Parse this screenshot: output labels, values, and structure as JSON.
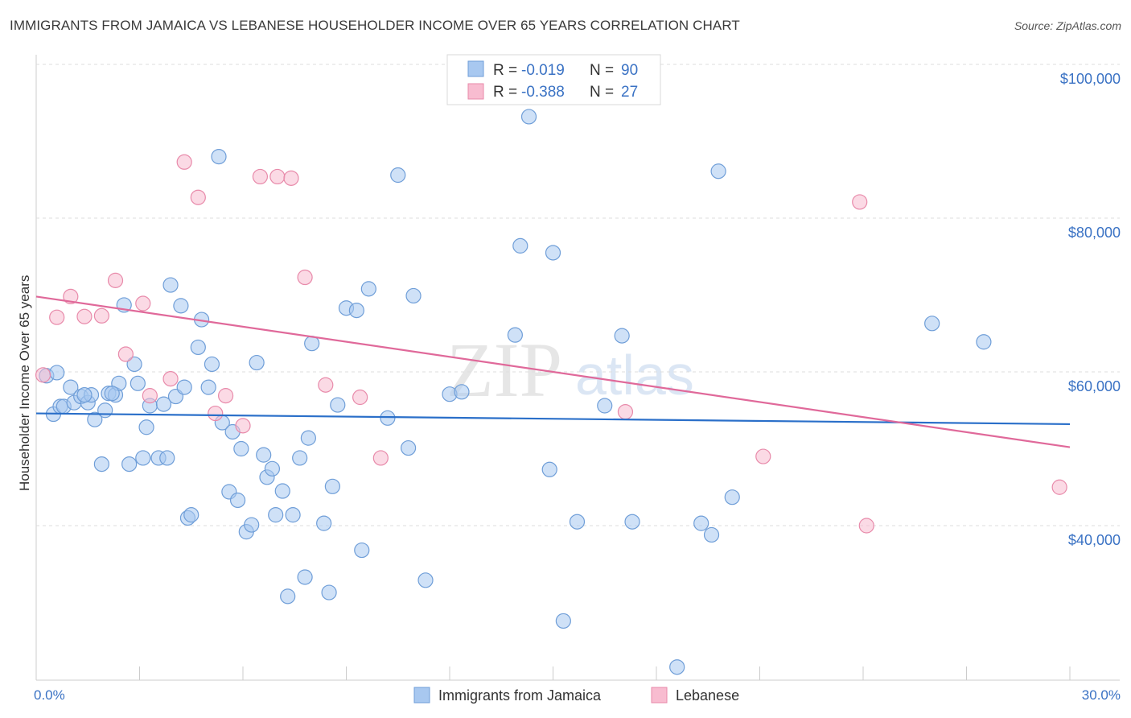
{
  "title": "IMMIGRANTS FROM JAMAICA VS LEBANESE HOUSEHOLDER INCOME OVER 65 YEARS CORRELATION CHART",
  "source": "Source: ZipAtlas.com",
  "watermark": "ZIPatlas",
  "chart_data": {
    "type": "scatter",
    "ylabel": "Householder Income Over 65 years",
    "xlim": [
      0,
      30
    ],
    "ylim": [
      20000,
      102000
    ],
    "x_tick_labels": [
      "0.0%",
      "30.0%"
    ],
    "y_ticks": [
      {
        "value": 100000,
        "label": "$100,000"
      },
      {
        "value": 80000,
        "label": "$80,000"
      },
      {
        "value": 60000,
        "label": "$60,000"
      },
      {
        "value": 40000,
        "label": "$40,000"
      }
    ],
    "legend": {
      "r_label": "R =",
      "n_label": "N =",
      "rows": [
        {
          "r": "-0.019",
          "n": "90",
          "color": "#a8c8f0",
          "stroke": "#6f9ed8"
        },
        {
          "r": "-0.388",
          "n": "27",
          "color": "#f8bcd0",
          "stroke": "#e88aaa"
        }
      ]
    },
    "series": [
      {
        "name": "Immigrants from Jamaica",
        "color": "#a8c8f0",
        "stroke": "#6f9ed8",
        "line_color": "#2a6fc9",
        "trend": [
          [
            0,
            54600
          ],
          [
            30,
            53200
          ]
        ],
        "points": [
          [
            0.3,
            59500
          ],
          [
            0.5,
            54500
          ],
          [
            0.7,
            55500
          ],
          [
            0.8,
            55500
          ],
          [
            1.0,
            58000
          ],
          [
            1.1,
            56000
          ],
          [
            1.3,
            56800
          ],
          [
            1.5,
            56000
          ],
          [
            1.6,
            57000
          ],
          [
            1.7,
            53800
          ],
          [
            1.9,
            48000
          ],
          [
            2.0,
            55000
          ],
          [
            2.1,
            57200
          ],
          [
            2.3,
            57000
          ],
          [
            2.4,
            58500
          ],
          [
            2.55,
            68700
          ],
          [
            2.7,
            48000
          ],
          [
            2.85,
            61000
          ],
          [
            2.95,
            58500
          ],
          [
            3.1,
            48800
          ],
          [
            3.2,
            52800
          ],
          [
            3.3,
            55600
          ],
          [
            3.55,
            48800
          ],
          [
            3.7,
            55800
          ],
          [
            3.8,
            48800
          ],
          [
            3.9,
            71300
          ],
          [
            4.05,
            56800
          ],
          [
            4.2,
            68600
          ],
          [
            4.3,
            58000
          ],
          [
            4.4,
            41000
          ],
          [
            4.5,
            41400
          ],
          [
            4.7,
            63200
          ],
          [
            4.8,
            66800
          ],
          [
            5.0,
            58000
          ],
          [
            5.1,
            61000
          ],
          [
            5.3,
            88000
          ],
          [
            5.4,
            53400
          ],
          [
            5.6,
            44400
          ],
          [
            5.7,
            52200
          ],
          [
            5.85,
            43300
          ],
          [
            5.95,
            50000
          ],
          [
            6.1,
            39200
          ],
          [
            6.25,
            40100
          ],
          [
            6.4,
            61200
          ],
          [
            6.6,
            49200
          ],
          [
            6.7,
            46300
          ],
          [
            6.85,
            47400
          ],
          [
            6.95,
            41400
          ],
          [
            7.15,
            44500
          ],
          [
            7.3,
            30800
          ],
          [
            7.45,
            41400
          ],
          [
            7.65,
            48800
          ],
          [
            7.8,
            33300
          ],
          [
            7.9,
            51400
          ],
          [
            8.0,
            63700
          ],
          [
            8.35,
            40300
          ],
          [
            8.5,
            31300
          ],
          [
            8.6,
            45100
          ],
          [
            8.75,
            55700
          ],
          [
            9.0,
            68300
          ],
          [
            9.3,
            68000
          ],
          [
            9.45,
            36800
          ],
          [
            9.65,
            70800
          ],
          [
            10.2,
            54000
          ],
          [
            10.5,
            85600
          ],
          [
            10.8,
            50100
          ],
          [
            10.95,
            69900
          ],
          [
            11.3,
            32900
          ],
          [
            12.0,
            57100
          ],
          [
            12.35,
            57400
          ],
          [
            13.9,
            64800
          ],
          [
            14.05,
            76400
          ],
          [
            14.3,
            93200
          ],
          [
            14.9,
            47300
          ],
          [
            15.0,
            75500
          ],
          [
            15.3,
            27600
          ],
          [
            15.7,
            40500
          ],
          [
            16.5,
            55600
          ],
          [
            17.0,
            64700
          ],
          [
            17.3,
            40500
          ],
          [
            18.6,
            21600
          ],
          [
            19.3,
            40300
          ],
          [
            19.6,
            38800
          ],
          [
            19.8,
            86100
          ],
          [
            20.2,
            43700
          ],
          [
            26.0,
            66300
          ],
          [
            27.5,
            63900
          ],
          [
            0.6,
            59900
          ],
          [
            2.2,
            57200
          ],
          [
            1.4,
            57000
          ]
        ]
      },
      {
        "name": "Lebanese",
        "color": "#f8bcd0",
        "stroke": "#e88aaa",
        "line_color": "#e0699a",
        "trend": [
          [
            0,
            69800
          ],
          [
            30,
            50200
          ]
        ],
        "points": [
          [
            0.2,
            59600
          ],
          [
            0.6,
            67100
          ],
          [
            1.0,
            69800
          ],
          [
            1.4,
            67200
          ],
          [
            1.9,
            67300
          ],
          [
            2.3,
            71900
          ],
          [
            2.6,
            62300
          ],
          [
            3.1,
            68900
          ],
          [
            3.3,
            56900
          ],
          [
            3.9,
            59100
          ],
          [
            4.3,
            87300
          ],
          [
            4.7,
            82700
          ],
          [
            5.2,
            54600
          ],
          [
            5.5,
            56900
          ],
          [
            6.0,
            53000
          ],
          [
            6.5,
            85400
          ],
          [
            7.0,
            85400
          ],
          [
            7.4,
            85200
          ],
          [
            7.8,
            72300
          ],
          [
            8.4,
            58300
          ],
          [
            9.4,
            56700
          ],
          [
            10.0,
            48800
          ],
          [
            17.1,
            54800
          ],
          [
            21.1,
            49000
          ],
          [
            23.9,
            82100
          ],
          [
            24.1,
            40000
          ],
          [
            29.7,
            45000
          ]
        ]
      }
    ]
  }
}
